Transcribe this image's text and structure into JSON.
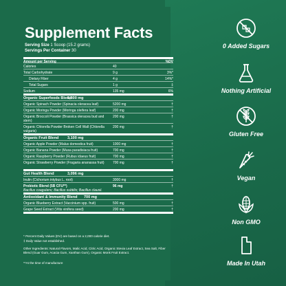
{
  "facts": {
    "title": "Supplement Facts",
    "serving_size_label": "Serving Size",
    "serving_size_value": "1 Scoop (15.2 grams)",
    "servings_per_container_label": "Servings Per Container",
    "servings_per_container_value": "30",
    "header": {
      "amount": "Amount per Serving",
      "dv": "%DV"
    },
    "nutrients": [
      {
        "name": "Calories",
        "amount": "40",
        "dv": ""
      },
      {
        "name": "Total Carbohydrate",
        "amount": "9 g",
        "dv": "3%*"
      },
      {
        "name": "Dietary Fiber",
        "amount": "4 g",
        "dv": "14%*"
      },
      {
        "name": "Total Sugars",
        "amount": "1 g",
        "dv": "‡"
      },
      {
        "name": "Sodium",
        "amount": "135 mg",
        "dv": "6%"
      }
    ],
    "blends": [
      {
        "name": "Organic Superfoods Blend",
        "amount": "5,800 mg",
        "items": [
          {
            "name": "Organic Spinach Powder (Spinacia oleracea leaf)",
            "amount": "5200 mg",
            "dv": "†"
          },
          {
            "name": "Organic Moringa Powder (Moringa oleifera leaf)",
            "amount": "200 mg",
            "dv": "†"
          },
          {
            "name": "Organic Broccoli Powder (Brassica oleracea bud and stem)",
            "amount": "200 mg",
            "dv": "†"
          },
          {
            "name": "Organic Chlorella Powder Broken Cell Wall (Chlorella vulgaris)",
            "amount": "200 mg",
            "dv": "†"
          }
        ]
      },
      {
        "name": "Organic Fruit Blend",
        "amount": "3,100 mg",
        "items": [
          {
            "name": "Organic Apple Powder (Malus domestica fruit)",
            "amount": "1000 mg",
            "dv": "†"
          },
          {
            "name": "Organic Banana Powder (Musa paradisiaca fruit)",
            "amount": "700 mg",
            "dv": "†"
          },
          {
            "name": "Organic Raspberry Powder (Rubus idaeus fruit)",
            "amount": "700 mg",
            "dv": "†"
          },
          {
            "name": "Organic Strawberry Powder (Fragaria ananassa fruit)",
            "amount": "700 mg",
            "dv": "†"
          }
        ]
      },
      {
        "name": "Gut Health Blend",
        "amount": "3,096 mg",
        "items": [
          {
            "name": "Inulin (Cichorium intybus L. root)",
            "amount": "3000 mg",
            "dv": "†"
          },
          {
            "name": "Probiotic Blend (5B CFU**)",
            "sub": "Bacillus coagulans; Bacillus subtilis; Bacillus clausii.",
            "amount": "96 mg",
            "dv": "†",
            "bold": true
          }
        ]
      },
      {
        "name": "Antioxidant & Immunity Blend",
        "amount": "700 mg",
        "items": [
          {
            "name": "Organic Blueberry Extract (Vaccinium spp. fruit)",
            "amount": "500 mg",
            "dv": "†"
          },
          {
            "name": "Grape Seed Extract (Vitis vinifera seed)",
            "amount": "200 mg",
            "dv": "†"
          }
        ]
      }
    ],
    "footnote1": "* Percent Daily Values (DV) are based on a 2,000 calorie diet.",
    "footnote2": "‡ Daily Value not established.",
    "other_ingredients": "Other Ingredients: Natural Flavors, Malic Acid, Citric Acid, Organic Stevia Leaf Extract, Sea Salt, Fiber Blend (Guar Gum, Acacia Gum, Xanthan Gum), Organic Monk Fruit Extract.",
    "footnote3": "**At the time of manufacture"
  },
  "claims": [
    {
      "icon": "no-sugar-icon",
      "label": "0 Added Sugars"
    },
    {
      "icon": "flask-icon",
      "label": "Nothing Artificial"
    },
    {
      "icon": "wheat-icon",
      "label": "Gluten Free"
    },
    {
      "icon": "carrot-icon",
      "label": "Vegan"
    },
    {
      "icon": "corn-icon",
      "label": "Non GMO"
    },
    {
      "icon": "utah-icon",
      "label": "Made In Utah"
    }
  ],
  "colors": {
    "background": "#1b6b4a",
    "text": "#ffffff"
  }
}
